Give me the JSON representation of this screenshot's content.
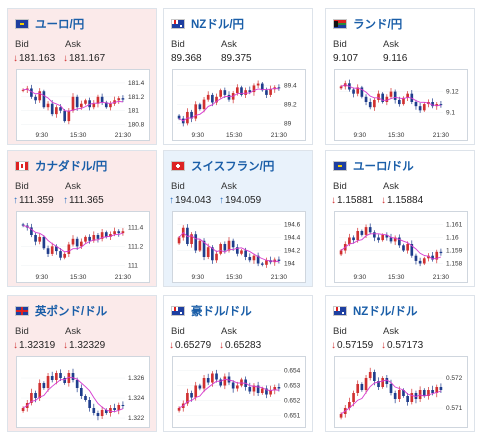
{
  "labels": {
    "bid": "Bid",
    "ask": "Ask"
  },
  "colors": {
    "card_red": "#fbeaea",
    "card_blue": "#e9f2fb",
    "down": "#d03030",
    "up": "#2a6fc0",
    "title": "#1a5ea8",
    "avg_line": "#d63bd0"
  },
  "cards": [
    {
      "title": "ユーロ/円",
      "flag": "eu-flag-icon",
      "bg": "red",
      "bid": "181.163",
      "ask": "181.167",
      "bid_dir": "down",
      "ask_dir": "down",
      "chart_data": {
        "type": "candlestick",
        "x_ticks": [
          "9:30",
          "15:30",
          "21:30"
        ],
        "y_ticks": [
          "181.4",
          "181.2",
          "181",
          "180.8"
        ],
        "ylim": [
          180.75,
          181.5
        ],
        "close": [
          181.3,
          181.32,
          181.2,
          181.15,
          181.28,
          181.05,
          181.1,
          180.95,
          181.05,
          181.0,
          180.85,
          181.0,
          181.2,
          181.05,
          181.1,
          181.15,
          181.05,
          181.1,
          181.2,
          181.12,
          181.05,
          181.1,
          181.15,
          181.18,
          181.16
        ]
      }
    },
    {
      "title": "NZドル/円",
      "flag": "nz-flag-icon",
      "bg": "white",
      "bid": "89.368",
      "ask": "89.375",
      "bid_dir": "",
      "ask_dir": "",
      "chart_data": {
        "type": "candlestick",
        "x_ticks": [
          "9:30",
          "15:30",
          "21:30"
        ],
        "y_ticks": [
          "89.4",
          "89.2",
          "89"
        ],
        "ylim": [
          88.95,
          89.5
        ],
        "close": [
          89.05,
          89.0,
          89.12,
          89.05,
          89.2,
          89.15,
          89.25,
          89.3,
          89.22,
          89.28,
          89.35,
          89.3,
          89.25,
          89.32,
          89.38,
          89.3,
          89.35,
          89.33,
          89.4,
          89.42,
          89.35,
          89.3,
          89.36,
          89.38,
          89.37
        ]
      }
    },
    {
      "title": "ランド/円",
      "flag": "za-flag-icon",
      "bg": "white",
      "bid": "9.107",
      "ask": "9.116",
      "bid_dir": "",
      "ask_dir": "",
      "chart_data": {
        "type": "candlestick",
        "x_ticks": [
          "9:30",
          "15:30",
          "21:30"
        ],
        "y_ticks": [
          "9.12",
          "9.1"
        ],
        "ylim": [
          9.085,
          9.135
        ],
        "close": [
          9.125,
          9.128,
          9.122,
          9.118,
          9.124,
          9.115,
          9.11,
          9.105,
          9.112,
          9.118,
          9.11,
          9.115,
          9.12,
          9.112,
          9.108,
          9.114,
          9.118,
          9.11,
          9.106,
          9.102,
          9.108,
          9.11,
          9.106,
          9.108,
          9.107
        ]
      }
    },
    {
      "title": "カナダドル/円",
      "flag": "ca-flag-icon",
      "bg": "red",
      "bid": "111.359",
      "ask": "111.365",
      "bid_dir": "up",
      "ask_dir": "up",
      "chart_data": {
        "type": "candlestick",
        "x_ticks": [
          "9:30",
          "15:30",
          "21:30"
        ],
        "y_ticks": [
          "111.4",
          "111.2",
          "111"
        ],
        "ylim": [
          110.95,
          111.5
        ],
        "close": [
          111.42,
          111.4,
          111.32,
          111.25,
          111.3,
          111.18,
          111.12,
          111.2,
          111.15,
          111.08,
          111.12,
          111.22,
          111.28,
          111.2,
          111.25,
          111.3,
          111.26,
          111.32,
          111.28,
          111.35,
          111.3,
          111.33,
          111.36,
          111.34,
          111.36
        ]
      }
    },
    {
      "title": "スイスフラン/円",
      "flag": "ch-flag-icon",
      "bg": "blue",
      "bid": "194.043",
      "ask": "194.059",
      "bid_dir": "up",
      "ask_dir": "up",
      "chart_data": {
        "type": "candlestick",
        "x_ticks": [
          "9:30",
          "15:30",
          "21:30"
        ],
        "y_ticks": [
          "194.6",
          "194.4",
          "194.2",
          "194"
        ],
        "ylim": [
          193.9,
          194.7
        ],
        "close": [
          194.4,
          194.55,
          194.3,
          194.45,
          194.2,
          194.35,
          194.1,
          194.25,
          194.05,
          194.15,
          194.3,
          194.2,
          194.35,
          194.25,
          194.15,
          194.2,
          194.1,
          194.05,
          194.12,
          194.0,
          193.98,
          194.05,
          194.02,
          194.06,
          194.04
        ]
      }
    },
    {
      "title": "ユーロ/ドル",
      "flag": "eu-flag-icon",
      "bg": "white",
      "bid": "1.15881",
      "ask": "1.15884",
      "bid_dir": "down",
      "ask_dir": "down",
      "chart_data": {
        "type": "candlestick",
        "x_ticks": [
          "9:30",
          "15:30",
          "21:30"
        ],
        "y_ticks": [
          "1.161",
          "1.16",
          "1.159",
          "1.158"
        ],
        "ylim": [
          1.1575,
          1.1615
        ],
        "close": [
          1.159,
          1.1595,
          1.16,
          1.1598,
          1.1605,
          1.1602,
          1.1608,
          1.1604,
          1.16,
          1.1598,
          1.1602,
          1.16,
          1.1597,
          1.16,
          1.1594,
          1.159,
          1.1595,
          1.1586,
          1.1582,
          1.158,
          1.1584,
          1.1586,
          1.1583,
          1.1589,
          1.1588
        ]
      }
    },
    {
      "title": "英ポンド/ドル",
      "flag": "gb-flag-icon",
      "bg": "red",
      "bid": "1.32319",
      "ask": "1.32329",
      "bid_dir": "down",
      "ask_dir": "down",
      "chart_data": {
        "type": "candlestick",
        "x_ticks": [],
        "y_ticks": [
          "1.326",
          "1.324",
          "1.322"
        ],
        "ylim": [
          1.3215,
          1.3275
        ],
        "close": [
          1.323,
          1.3235,
          1.3245,
          1.324,
          1.3255,
          1.325,
          1.3262,
          1.3258,
          1.3265,
          1.326,
          1.3255,
          1.3265,
          1.3258,
          1.325,
          1.3242,
          1.3238,
          1.323,
          1.3225,
          1.3222,
          1.3228,
          1.3225,
          1.323,
          1.3228,
          1.3233,
          1.3232
        ]
      }
    },
    {
      "title": "豪ドル/ドル",
      "flag": "au-flag-icon",
      "bg": "white",
      "bid": "0.65279",
      "ask": "0.65283",
      "bid_dir": "down",
      "ask_dir": "down",
      "chart_data": {
        "type": "candlestick",
        "x_ticks": [],
        "y_ticks": [
          "0.654",
          "0.653",
          "0.652",
          "0.651"
        ],
        "ylim": [
          0.6505,
          0.6545
        ],
        "close": [
          0.6515,
          0.6518,
          0.6525,
          0.6522,
          0.653,
          0.6528,
          0.6535,
          0.6532,
          0.6538,
          0.6534,
          0.653,
          0.6536,
          0.6532,
          0.6528,
          0.653,
          0.6534,
          0.6529,
          0.6526,
          0.653,
          0.6525,
          0.6528,
          0.6524,
          0.6527,
          0.6529,
          0.6528
        ]
      }
    },
    {
      "title": "NZドル/ドル",
      "flag": "nz-flag-icon",
      "bg": "white",
      "bid": "0.57159",
      "ask": "0.57173",
      "bid_dir": "down",
      "ask_dir": "down",
      "chart_data": {
        "type": "candlestick",
        "x_ticks": [],
        "y_ticks": [
          "0.572",
          "0.571"
        ],
        "ylim": [
          0.5705,
          0.5725
        ],
        "close": [
          0.5708,
          0.571,
          0.5712,
          0.5715,
          0.5718,
          0.5716,
          0.572,
          0.5722,
          0.5719,
          0.5717,
          0.572,
          0.5718,
          0.5715,
          0.5713,
          0.5716,
          0.5714,
          0.5712,
          0.5715,
          0.5713,
          0.5716,
          0.5714,
          0.5716,
          0.5715,
          0.5717,
          0.5716
        ]
      }
    }
  ]
}
